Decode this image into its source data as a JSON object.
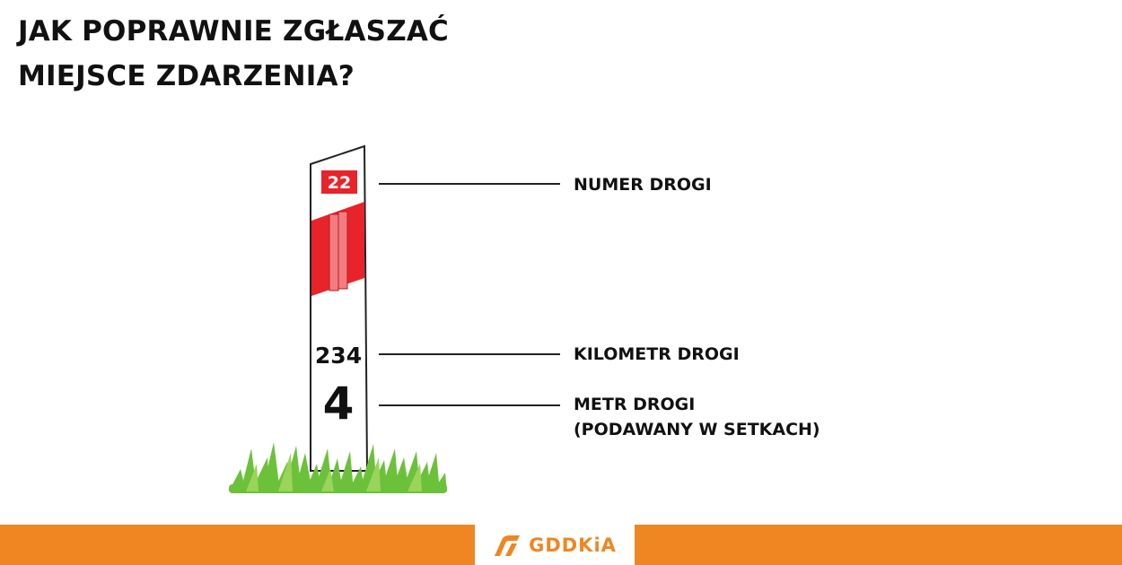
{
  "title": {
    "line1": "JAK POPRAWNIE ZGŁASZAĆ",
    "line2": "MIEJSCE ZDARZENIA?"
  },
  "post": {
    "road_number": "22",
    "kilometer": "234",
    "meter": "4",
    "colors": {
      "red": "#e8232a",
      "stripe_light": "#f47c80",
      "grass": "#6cc13b"
    }
  },
  "callouts": {
    "road_number_label": "NUMER DROGI",
    "kilometer_label": "KILOMETR DROGI",
    "meter_label_line1": "METR DROGI",
    "meter_label_line2": "(PODAWANY W SETKACH)"
  },
  "footer": {
    "logo_text": "GDDKiA",
    "logo_icon": "gddkia-road-logo-icon",
    "color": "#f08622"
  }
}
